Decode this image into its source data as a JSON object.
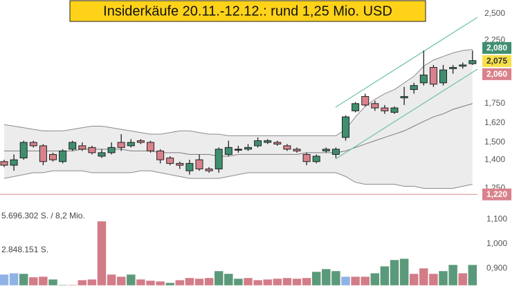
{
  "chart_data": {
    "type": "candlestick",
    "title": "Insiderkäufe 20.11.-12.12.: rund 1,25 Mio. USD",
    "log_scale": true,
    "ylim": [
      1.159,
      2.64
    ],
    "yticks": [
      {
        "value": 2.5,
        "label": "2,500"
      },
      {
        "value": 2.25,
        "label": "2,250"
      },
      {
        "value": 1.75,
        "label": "1,750"
      },
      {
        "value": 1.62,
        "label": "1,620"
      },
      {
        "value": 1.5,
        "label": "1,500"
      },
      {
        "value": 1.4,
        "label": "1,400"
      },
      {
        "value": 1.25,
        "label": "1,250"
      }
    ],
    "up_color": "#3f8f6e",
    "down_color": "#d9828c",
    "open": [
      1.39,
      1.37,
      1.41,
      1.5,
      1.48,
      1.43,
      1.39,
      1.46,
      1.48,
      1.47,
      1.42,
      1.44,
      1.5,
      1.48,
      1.51,
      1.5,
      1.45,
      1.41,
      1.38,
      1.34,
      1.4,
      1.35,
      1.35,
      1.43,
      1.46,
      1.46,
      1.48,
      1.5,
      1.5,
      1.48,
      1.46,
      1.43,
      1.39,
      1.45,
      1.43,
      1.53,
      1.7,
      1.8,
      1.75,
      1.72,
      1.69,
      1.79,
      1.85,
      1.9,
      2.02,
      1.9,
      2.01,
      2.03,
      2.05
    ],
    "close": [
      1.37,
      1.4,
      1.5,
      1.48,
      1.39,
      1.4,
      1.45,
      1.5,
      1.46,
      1.44,
      1.44,
      1.47,
      1.47,
      1.5,
      1.5,
      1.45,
      1.4,
      1.38,
      1.37,
      1.38,
      1.35,
      1.34,
      1.46,
      1.47,
      1.46,
      1.47,
      1.51,
      1.51,
      1.49,
      1.46,
      1.45,
      1.39,
      1.42,
      1.46,
      1.46,
      1.66,
      1.75,
      1.74,
      1.72,
      1.7,
      1.72,
      1.8,
      1.88,
      1.96,
      1.89,
      2.0,
      2.02,
      2.04,
      2.075
    ],
    "high": [
      1.4,
      1.43,
      1.51,
      1.51,
      1.49,
      1.44,
      1.46,
      1.51,
      1.5,
      1.48,
      1.46,
      1.5,
      1.55,
      1.52,
      1.52,
      1.51,
      1.46,
      1.42,
      1.39,
      1.4,
      1.43,
      1.36,
      1.47,
      1.51,
      1.48,
      1.49,
      1.53,
      1.52,
      1.51,
      1.49,
      1.47,
      1.44,
      1.43,
      1.47,
      1.47,
      1.67,
      1.76,
      1.82,
      1.77,
      1.74,
      1.73,
      1.87,
      1.9,
      2.16,
      2.04,
      2.04,
      2.04,
      2.06,
      2.16
    ],
    "low": [
      1.36,
      1.34,
      1.4,
      1.47,
      1.37,
      1.39,
      1.38,
      1.45,
      1.45,
      1.43,
      1.41,
      1.43,
      1.45,
      1.47,
      1.49,
      1.44,
      1.38,
      1.37,
      1.35,
      1.32,
      1.34,
      1.33,
      1.33,
      1.42,
      1.44,
      1.45,
      1.47,
      1.49,
      1.48,
      1.45,
      1.44,
      1.37,
      1.38,
      1.44,
      1.41,
      1.51,
      1.69,
      1.73,
      1.7,
      1.68,
      1.68,
      1.74,
      1.82,
      1.88,
      1.87,
      1.88,
      1.97,
      2.01,
      2.04
    ],
    "bands": {
      "color": "#8a8a8a",
      "fill": "#ececec",
      "middle_color": "#7a7a7a",
      "upper": [
        1.61,
        1.6,
        1.59,
        1.58,
        1.57,
        1.57,
        1.57,
        1.58,
        1.59,
        1.6,
        1.6,
        1.59,
        1.58,
        1.57,
        1.56,
        1.55,
        1.55,
        1.56,
        1.57,
        1.57,
        1.56,
        1.55,
        1.55,
        1.54,
        1.54,
        1.54,
        1.54,
        1.54,
        1.54,
        1.54,
        1.54,
        1.54,
        1.54,
        1.54,
        1.54,
        1.58,
        1.66,
        1.73,
        1.78,
        1.82,
        1.85,
        1.9,
        1.95,
        2.03,
        2.08,
        2.11,
        2.14,
        2.16,
        2.17
      ],
      "middle": [
        1.45,
        1.45,
        1.45,
        1.45,
        1.45,
        1.45,
        1.45,
        1.45,
        1.46,
        1.46,
        1.46,
        1.46,
        1.46,
        1.45,
        1.45,
        1.45,
        1.44,
        1.44,
        1.44,
        1.43,
        1.43,
        1.43,
        1.42,
        1.42,
        1.43,
        1.43,
        1.43,
        1.43,
        1.43,
        1.43,
        1.43,
        1.44,
        1.44,
        1.44,
        1.44,
        1.45,
        1.47,
        1.49,
        1.51,
        1.53,
        1.55,
        1.57,
        1.6,
        1.63,
        1.66,
        1.68,
        1.71,
        1.73,
        1.75
      ],
      "lower": [
        1.3,
        1.31,
        1.32,
        1.33,
        1.33,
        1.34,
        1.34,
        1.34,
        1.34,
        1.33,
        1.33,
        1.33,
        1.33,
        1.33,
        1.34,
        1.34,
        1.33,
        1.32,
        1.31,
        1.3,
        1.3,
        1.3,
        1.3,
        1.31,
        1.32,
        1.33,
        1.33,
        1.33,
        1.33,
        1.33,
        1.33,
        1.33,
        1.33,
        1.33,
        1.33,
        1.31,
        1.28,
        1.27,
        1.27,
        1.27,
        1.27,
        1.26,
        1.26,
        1.25,
        1.25,
        1.25,
        1.25,
        1.26,
        1.27
      ]
    },
    "price_markers": [
      {
        "value": 2.08,
        "label": "2,080",
        "color": "#3f8f6e",
        "text_color": "#ffffff"
      },
      {
        "value": 2.075,
        "label": "2,075",
        "color": "#f5e04a",
        "text_color": "#333333"
      },
      {
        "value": 2.06,
        "label": "2,060",
        "color": "#d9828c",
        "text_color": "#ffffff"
      },
      {
        "value": 1.22,
        "label": "1,220",
        "color": "#d9828c",
        "text_color": "#ffffff"
      }
    ],
    "volume": {
      "ylim": [
        0,
        6270000
      ],
      "yticks": [
        {
          "value": 5696302,
          "label": "5.696.302 S. / 8,2 Mio."
        },
        {
          "value": 2848151,
          "label": "2.848.151 S."
        }
      ],
      "y2lim": [
        0.83,
        1.134
      ],
      "y2ticks": [
        {
          "value": 1.1,
          "label": "1,100"
        },
        {
          "value": 1.0,
          "label": "1,000"
        },
        {
          "value": 0.9,
          "label": "0,900"
        }
      ],
      "values": [
        930000,
        1040000,
        990000,
        700000,
        750000,
        520000,
        60000,
        60000,
        460000,
        520000,
        5400000,
        930000,
        750000,
        930000,
        520000,
        410000,
        350000,
        230000,
        460000,
        640000,
        580000,
        640000,
        1220000,
        990000,
        580000,
        640000,
        460000,
        520000,
        580000,
        640000,
        580000,
        640000,
        1160000,
        1390000,
        1220000,
        750000,
        750000,
        750000,
        1040000,
        1620000,
        2150000,
        2260000,
        990000,
        1450000,
        990000,
        1220000,
        1740000,
        1040000,
        1740000
      ],
      "colors": [
        "#8fb3e6",
        "#8fb3e6",
        "#5a9a7a",
        "#d27c87",
        "#d27c87",
        "#5a9a7a",
        "#5a9a7a",
        "#d27c87",
        "#d27c87",
        "#d27c87",
        "#d27c87",
        "#d27c87",
        "#d27c87",
        "#5a9a7a",
        "#d27c87",
        "#d27c87",
        "#d27c87",
        "#5a9a7a",
        "#d27c87",
        "#d27c87",
        "#d27c87",
        "#d27c87",
        "#5a9a7a",
        "#5a9a7a",
        "#5a9a7a",
        "#d27c87",
        "#d27c87",
        "#d27c87",
        "#d27c87",
        "#d27c87",
        "#d27c87",
        "#d27c87",
        "#5a9a7a",
        "#5a9a7a",
        "#5a9a7a",
        "#8fb3e6",
        "#d27c87",
        "#d27c87",
        "#5a9a7a",
        "#5a9a7a",
        "#5a9a7a",
        "#5a9a7a",
        "#d27c87",
        "#d27c87",
        "#d27c87",
        "#5a9a7a",
        "#5a9a7a",
        "#d27c87",
        "#5a9a7a"
      ]
    }
  }
}
